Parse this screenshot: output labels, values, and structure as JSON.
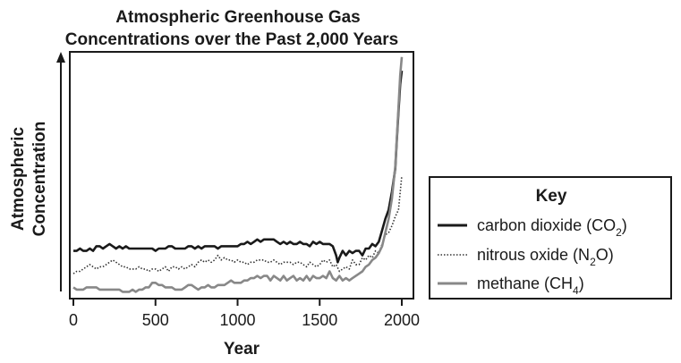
{
  "chart_data": {
    "type": "line",
    "title_lines": [
      "Atmospheric Greenhouse Gas",
      "Concentrations over the Past 2,000 Years"
    ],
    "xlabel": "Year",
    "ylabel_lines": [
      "Atmospheric",
      "Concentration"
    ],
    "xlim": [
      0,
      2000
    ],
    "ylim": [
      0,
      100
    ],
    "xticks": [
      0,
      500,
      1000,
      1500,
      2000
    ],
    "legend": {
      "title": "Key",
      "placement": "right",
      "entries": [
        {
          "prefix": "carbon dioxide (CO",
          "sub": "2",
          "suffix": ")"
        },
        {
          "prefix": "nitrous oxide (N",
          "sub": "2",
          "suffix": "O)"
        },
        {
          "prefix": "methane (CH",
          "sub": "4",
          "suffix": ")"
        }
      ]
    },
    "series": [
      {
        "key": "co2",
        "color": "#1a1a1a",
        "dash": "solid",
        "points": [
          [
            0,
            19
          ],
          [
            20,
            19
          ],
          [
            40,
            20
          ],
          [
            60,
            19
          ],
          [
            80,
            19
          ],
          [
            100,
            20
          ],
          [
            120,
            19
          ],
          [
            140,
            21
          ],
          [
            160,
            21
          ],
          [
            180,
            20
          ],
          [
            200,
            21
          ],
          [
            220,
            22
          ],
          [
            240,
            21
          ],
          [
            260,
            20
          ],
          [
            280,
            21
          ],
          [
            300,
            20
          ],
          [
            320,
            21
          ],
          [
            340,
            20
          ],
          [
            360,
            20
          ],
          [
            380,
            20
          ],
          [
            400,
            20
          ],
          [
            420,
            20
          ],
          [
            440,
            20
          ],
          [
            460,
            20
          ],
          [
            480,
            20
          ],
          [
            500,
            19
          ],
          [
            520,
            20
          ],
          [
            540,
            20
          ],
          [
            560,
            20
          ],
          [
            580,
            21
          ],
          [
            600,
            21
          ],
          [
            620,
            20
          ],
          [
            640,
            20
          ],
          [
            660,
            20
          ],
          [
            680,
            20
          ],
          [
            700,
            21
          ],
          [
            720,
            21
          ],
          [
            740,
            20
          ],
          [
            760,
            21
          ],
          [
            780,
            20
          ],
          [
            800,
            21
          ],
          [
            820,
            21
          ],
          [
            840,
            21
          ],
          [
            860,
            21
          ],
          [
            880,
            20
          ],
          [
            900,
            21
          ],
          [
            920,
            21
          ],
          [
            940,
            21
          ],
          [
            960,
            21
          ],
          [
            980,
            21
          ],
          [
            1000,
            21
          ],
          [
            1020,
            22
          ],
          [
            1040,
            22
          ],
          [
            1060,
            23
          ],
          [
            1080,
            22
          ],
          [
            1100,
            23
          ],
          [
            1120,
            24
          ],
          [
            1140,
            23
          ],
          [
            1160,
            24
          ],
          [
            1180,
            24
          ],
          [
            1200,
            24
          ],
          [
            1220,
            24
          ],
          [
            1240,
            23
          ],
          [
            1260,
            22
          ],
          [
            1280,
            23
          ],
          [
            1300,
            22
          ],
          [
            1320,
            23
          ],
          [
            1340,
            22
          ],
          [
            1360,
            22
          ],
          [
            1380,
            23
          ],
          [
            1400,
            22
          ],
          [
            1420,
            22
          ],
          [
            1440,
            21
          ],
          [
            1460,
            23
          ],
          [
            1480,
            22
          ],
          [
            1500,
            23
          ],
          [
            1520,
            22
          ],
          [
            1540,
            22
          ],
          [
            1560,
            22
          ],
          [
            1580,
            21
          ],
          [
            1600,
            17
          ],
          [
            1610,
            14
          ],
          [
            1620,
            16
          ],
          [
            1640,
            19
          ],
          [
            1660,
            17
          ],
          [
            1680,
            19
          ],
          [
            1700,
            18
          ],
          [
            1720,
            19
          ],
          [
            1740,
            19
          ],
          [
            1760,
            17
          ],
          [
            1780,
            20
          ],
          [
            1800,
            20
          ],
          [
            1820,
            22
          ],
          [
            1840,
            21
          ],
          [
            1860,
            23
          ],
          [
            1880,
            28
          ],
          [
            1900,
            33
          ],
          [
            1920,
            37
          ],
          [
            1940,
            45
          ],
          [
            1960,
            55
          ],
          [
            1970,
            68
          ],
          [
            1980,
            80
          ],
          [
            1990,
            92
          ],
          [
            2000,
            98
          ]
        ]
      },
      {
        "key": "n2o",
        "color": "#333333",
        "dash": "dotted",
        "points": [
          [
            0,
            9
          ],
          [
            20,
            10
          ],
          [
            40,
            10
          ],
          [
            60,
            11
          ],
          [
            80,
            12
          ],
          [
            100,
            13
          ],
          [
            120,
            12
          ],
          [
            140,
            11
          ],
          [
            160,
            12
          ],
          [
            180,
            12
          ],
          [
            200,
            13
          ],
          [
            220,
            14
          ],
          [
            240,
            15
          ],
          [
            260,
            14
          ],
          [
            280,
            13
          ],
          [
            300,
            12
          ],
          [
            320,
            12
          ],
          [
            340,
            11
          ],
          [
            360,
            11
          ],
          [
            380,
            11
          ],
          [
            400,
            12
          ],
          [
            420,
            11
          ],
          [
            440,
            11
          ],
          [
            460,
            10
          ],
          [
            480,
            11
          ],
          [
            500,
            11
          ],
          [
            520,
            10
          ],
          [
            540,
            11
          ],
          [
            560,
            12
          ],
          [
            580,
            10
          ],
          [
            600,
            12
          ],
          [
            620,
            12
          ],
          [
            640,
            11
          ],
          [
            660,
            12
          ],
          [
            680,
            11
          ],
          [
            700,
            12
          ],
          [
            720,
            13
          ],
          [
            740,
            12
          ],
          [
            760,
            14
          ],
          [
            780,
            15
          ],
          [
            800,
            14
          ],
          [
            820,
            15
          ],
          [
            840,
            14
          ],
          [
            860,
            15
          ],
          [
            880,
            17
          ],
          [
            900,
            15
          ],
          [
            920,
            16
          ],
          [
            940,
            15
          ],
          [
            960,
            15
          ],
          [
            980,
            14
          ],
          [
            1000,
            15
          ],
          [
            1020,
            14
          ],
          [
            1040,
            14
          ],
          [
            1060,
            13
          ],
          [
            1080,
            14
          ],
          [
            1100,
            14
          ],
          [
            1120,
            15
          ],
          [
            1140,
            15
          ],
          [
            1160,
            15
          ],
          [
            1180,
            14
          ],
          [
            1200,
            14
          ],
          [
            1220,
            15
          ],
          [
            1240,
            14
          ],
          [
            1260,
            13
          ],
          [
            1280,
            14
          ],
          [
            1300,
            14
          ],
          [
            1320,
            14
          ],
          [
            1340,
            13
          ],
          [
            1360,
            14
          ],
          [
            1380,
            14
          ],
          [
            1400,
            13
          ],
          [
            1420,
            12
          ],
          [
            1440,
            14
          ],
          [
            1460,
            13
          ],
          [
            1480,
            12
          ],
          [
            1500,
            13
          ],
          [
            1520,
            15
          ],
          [
            1540,
            14
          ],
          [
            1560,
            15
          ],
          [
            1580,
            12
          ],
          [
            1600,
            13
          ],
          [
            1620,
            10
          ],
          [
            1640,
            11
          ],
          [
            1660,
            12
          ],
          [
            1680,
            11
          ],
          [
            1700,
            15
          ],
          [
            1720,
            13
          ],
          [
            1740,
            13
          ],
          [
            1760,
            16
          ],
          [
            1780,
            15
          ],
          [
            1800,
            17
          ],
          [
            1820,
            16
          ],
          [
            1840,
            19
          ],
          [
            1860,
            18
          ],
          [
            1880,
            22
          ],
          [
            1900,
            26
          ],
          [
            1920,
            27
          ],
          [
            1940,
            30
          ],
          [
            1960,
            34
          ],
          [
            1980,
            37
          ],
          [
            2000,
            52
          ]
        ]
      },
      {
        "key": "ch4",
        "color": "#888888",
        "dash": "solid",
        "points": [
          [
            0,
            3
          ],
          [
            20,
            2
          ],
          [
            40,
            2
          ],
          [
            60,
            2
          ],
          [
            80,
            3
          ],
          [
            100,
            3
          ],
          [
            120,
            3
          ],
          [
            140,
            3
          ],
          [
            160,
            2
          ],
          [
            180,
            2
          ],
          [
            200,
            2
          ],
          [
            220,
            2
          ],
          [
            240,
            2
          ],
          [
            260,
            2
          ],
          [
            280,
            2
          ],
          [
            300,
            1
          ],
          [
            320,
            1
          ],
          [
            340,
            1
          ],
          [
            360,
            2
          ],
          [
            380,
            1
          ],
          [
            400,
            2
          ],
          [
            420,
            2
          ],
          [
            440,
            3
          ],
          [
            460,
            3
          ],
          [
            480,
            5
          ],
          [
            500,
            5
          ],
          [
            520,
            4
          ],
          [
            540,
            4
          ],
          [
            560,
            3
          ],
          [
            580,
            3
          ],
          [
            600,
            3
          ],
          [
            620,
            2
          ],
          [
            640,
            2
          ],
          [
            660,
            2
          ],
          [
            680,
            3
          ],
          [
            700,
            4
          ],
          [
            720,
            4
          ],
          [
            740,
            3
          ],
          [
            760,
            2
          ],
          [
            780,
            3
          ],
          [
            800,
            3
          ],
          [
            820,
            4
          ],
          [
            840,
            3
          ],
          [
            860,
            3
          ],
          [
            880,
            4
          ],
          [
            900,
            4
          ],
          [
            920,
            4
          ],
          [
            940,
            5
          ],
          [
            960,
            6
          ],
          [
            980,
            5
          ],
          [
            1000,
            5
          ],
          [
            1020,
            5
          ],
          [
            1040,
            6
          ],
          [
            1060,
            6
          ],
          [
            1080,
            7
          ],
          [
            1100,
            7
          ],
          [
            1120,
            8
          ],
          [
            1140,
            7
          ],
          [
            1160,
            8
          ],
          [
            1180,
            8
          ],
          [
            1200,
            6
          ],
          [
            1220,
            8
          ],
          [
            1240,
            7
          ],
          [
            1260,
            6
          ],
          [
            1280,
            8
          ],
          [
            1300,
            6
          ],
          [
            1320,
            7
          ],
          [
            1340,
            8
          ],
          [
            1360,
            6
          ],
          [
            1380,
            7
          ],
          [
            1400,
            6
          ],
          [
            1420,
            8
          ],
          [
            1440,
            6
          ],
          [
            1460,
            8
          ],
          [
            1480,
            7
          ],
          [
            1500,
            7
          ],
          [
            1520,
            8
          ],
          [
            1540,
            7
          ],
          [
            1560,
            10
          ],
          [
            1580,
            7
          ],
          [
            1600,
            6
          ],
          [
            1620,
            8
          ],
          [
            1640,
            6
          ],
          [
            1660,
            7
          ],
          [
            1680,
            6
          ],
          [
            1700,
            7
          ],
          [
            1720,
            8
          ],
          [
            1740,
            9
          ],
          [
            1760,
            10
          ],
          [
            1780,
            12
          ],
          [
            1800,
            13
          ],
          [
            1820,
            15
          ],
          [
            1840,
            16
          ],
          [
            1860,
            18
          ],
          [
            1880,
            21
          ],
          [
            1900,
            27
          ],
          [
            1920,
            33
          ],
          [
            1940,
            42
          ],
          [
            1960,
            56
          ],
          [
            1980,
            82
          ],
          [
            1990,
            96
          ],
          [
            2000,
            104
          ]
        ]
      }
    ]
  }
}
